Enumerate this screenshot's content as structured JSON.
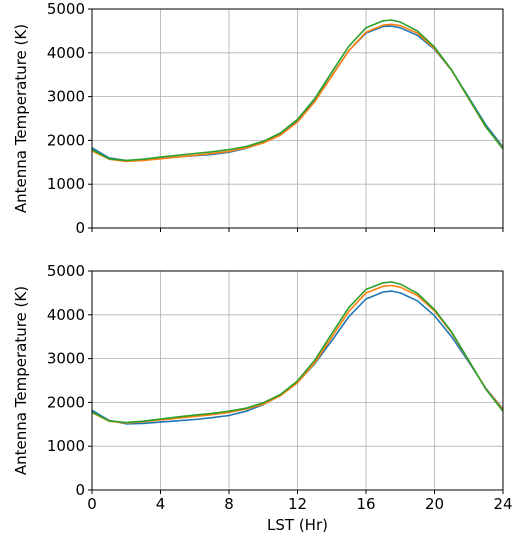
{
  "chart_data": [
    {
      "type": "line",
      "title": "",
      "xlabel": "",
      "ylabel": "Antenna Temperature (K)",
      "xlim": [
        0,
        24
      ],
      "ylim": [
        0,
        5000
      ],
      "xticks": [
        0,
        4,
        8,
        12,
        16,
        20,
        24
      ],
      "yticks": [
        0,
        1000,
        2000,
        3000,
        4000,
        5000
      ],
      "grid": true,
      "series": [
        {
          "color": "#1f77b4",
          "x": [
            0,
            1,
            2,
            3,
            4,
            5,
            6,
            7,
            8,
            9,
            10,
            11,
            12,
            13,
            14,
            15,
            16,
            17,
            17.5,
            18,
            19,
            20,
            21,
            22,
            23,
            24
          ],
          "y": [
            1830,
            1600,
            1540,
            1560,
            1590,
            1620,
            1650,
            1680,
            1730,
            1820,
            1950,
            2150,
            2450,
            2900,
            3480,
            4050,
            4450,
            4600,
            4610,
            4570,
            4400,
            4080,
            3600,
            2980,
            2350,
            1850
          ]
        },
        {
          "color": "#ff7f0e",
          "x": [
            0,
            1,
            2,
            3,
            4,
            5,
            6,
            7,
            8,
            9,
            10,
            11,
            12,
            13,
            14,
            15,
            16,
            17,
            17.5,
            18,
            19,
            20,
            21,
            22,
            23,
            24
          ],
          "y": [
            1760,
            1570,
            1520,
            1540,
            1580,
            1620,
            1660,
            1700,
            1750,
            1830,
            1940,
            2120,
            2420,
            2880,
            3470,
            4050,
            4470,
            4630,
            4650,
            4620,
            4450,
            4100,
            3600,
            2950,
            2300,
            1820
          ]
        },
        {
          "color": "#2ca02c",
          "x": [
            0,
            1,
            2,
            3,
            4,
            5,
            6,
            7,
            8,
            9,
            10,
            11,
            12,
            13,
            14,
            15,
            16,
            17,
            17.5,
            18,
            19,
            20,
            21,
            22,
            23,
            24
          ],
          "y": [
            1790,
            1580,
            1540,
            1570,
            1620,
            1660,
            1700,
            1740,
            1790,
            1860,
            1980,
            2170,
            2480,
            2950,
            3560,
            4150,
            4570,
            4730,
            4750,
            4700,
            4500,
            4130,
            3610,
            2960,
            2310,
            1800
          ]
        }
      ]
    },
    {
      "type": "line",
      "title": "",
      "xlabel": "LST (Hr)",
      "ylabel": "Antenna Temperature (K)",
      "xlim": [
        0,
        24
      ],
      "ylim": [
        0,
        5000
      ],
      "xticks": [
        0,
        4,
        8,
        12,
        16,
        20,
        24
      ],
      "yticks": [
        0,
        1000,
        2000,
        3000,
        4000,
        5000
      ],
      "grid": true,
      "series": [
        {
          "color": "#1f77b4",
          "x": [
            0,
            1,
            2,
            3,
            4,
            5,
            6,
            7,
            8,
            9,
            10,
            11,
            12,
            13,
            14,
            15,
            16,
            17,
            17.5,
            18,
            19,
            20,
            21,
            22,
            23,
            24
          ],
          "y": [
            1820,
            1590,
            1510,
            1520,
            1550,
            1580,
            1610,
            1650,
            1700,
            1800,
            1950,
            2160,
            2460,
            2880,
            3410,
            3960,
            4360,
            4520,
            4540,
            4500,
            4320,
            3980,
            3500,
            2920,
            2320,
            1850
          ]
        },
        {
          "color": "#ff7f0e",
          "x": [
            0,
            1,
            2,
            3,
            4,
            5,
            6,
            7,
            8,
            9,
            10,
            11,
            12,
            13,
            14,
            15,
            16,
            17,
            17.5,
            18,
            19,
            20,
            21,
            22,
            23,
            24
          ],
          "y": [
            1770,
            1570,
            1530,
            1560,
            1600,
            1640,
            1680,
            1720,
            1770,
            1850,
            1960,
            2150,
            2450,
            2900,
            3490,
            4080,
            4500,
            4650,
            4670,
            4630,
            4440,
            4090,
            3590,
            2950,
            2310,
            1830
          ]
        },
        {
          "color": "#2ca02c",
          "x": [
            0,
            1,
            2,
            3,
            4,
            5,
            6,
            7,
            8,
            9,
            10,
            11,
            12,
            13,
            14,
            15,
            16,
            17,
            17.5,
            18,
            19,
            20,
            21,
            22,
            23,
            24
          ],
          "y": [
            1780,
            1580,
            1540,
            1570,
            1620,
            1670,
            1710,
            1750,
            1800,
            1870,
            1990,
            2180,
            2490,
            2960,
            3570,
            4170,
            4580,
            4730,
            4750,
            4700,
            4490,
            4120,
            3610,
            2960,
            2300,
            1800
          ]
        }
      ]
    }
  ]
}
